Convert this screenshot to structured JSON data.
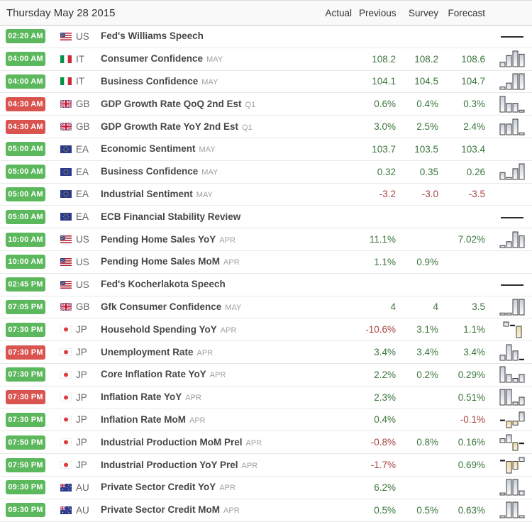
{
  "colors": {
    "badge_green": "#5cb85c",
    "badge_red": "#d9534f",
    "value_positive": "#3c763d",
    "value_negative": "#a94442"
  },
  "header": {
    "date": "Thursday May 28 2015",
    "columns": [
      "Actual",
      "Previous",
      "Survey",
      "Forecast"
    ]
  },
  "rows": [
    {
      "time": "02:20 AM",
      "badge": "green",
      "flag": "us",
      "country": "US",
      "event": "Fed's Williams Speech",
      "ref": "",
      "actual": "",
      "previous": "",
      "survey": "",
      "forecast": "",
      "spark": {
        "type": "line"
      }
    },
    {
      "time": "04:00 AM",
      "badge": "green",
      "flag": "it",
      "country": "IT",
      "event": "Consumer Confidence",
      "ref": "MAY",
      "actual": "",
      "previous": "108.2",
      "survey": "108.2",
      "forecast": "108.6",
      "spark": {
        "type": "bars",
        "values": [
          1,
          2.5,
          3.5,
          2.8
        ]
      }
    },
    {
      "time": "04:00 AM",
      "badge": "green",
      "flag": "it",
      "country": "IT",
      "event": "Business Confidence",
      "ref": "MAY",
      "actual": "",
      "previous": "104.1",
      "survey": "104.5",
      "forecast": "104.7",
      "spark": {
        "type": "bars",
        "values": [
          0.5,
          1.3,
          3.2,
          3.2
        ]
      }
    },
    {
      "time": "04:30 AM",
      "badge": "red",
      "flag": "gb",
      "country": "GB",
      "event": "GDP Growth Rate QoQ 2nd Est",
      "ref": "Q1",
      "actual": "",
      "previous": "0.6%",
      "survey": "0.4%",
      "forecast": "0.3%",
      "spark": {
        "type": "bars",
        "values": [
          3.2,
          1.8,
          1.8,
          0.4
        ]
      }
    },
    {
      "time": "04:30 AM",
      "badge": "red",
      "flag": "gb",
      "country": "GB",
      "event": "GDP Growth Rate YoY 2nd Est",
      "ref": "Q1",
      "actual": "",
      "previous": "3.0%",
      "survey": "2.5%",
      "forecast": "2.4%",
      "spark": {
        "type": "bars",
        "values": [
          2.2,
          2.2,
          3.2,
          0.4
        ]
      }
    },
    {
      "time": "05:00 AM",
      "badge": "green",
      "flag": "ea",
      "country": "EA",
      "event": "Economic Sentiment",
      "ref": "MAY",
      "actual": "",
      "previous": "103.7",
      "survey": "103.5",
      "forecast": "103.4",
      "spark": null
    },
    {
      "time": "05:00 AM",
      "badge": "green",
      "flag": "ea",
      "country": "EA",
      "event": "Business Confidence",
      "ref": "MAY",
      "actual": "",
      "previous": "0.32",
      "survey": "0.35",
      "forecast": "0.26",
      "spark": {
        "type": "bars",
        "values": [
          1.4,
          0.4,
          2.2,
          3.2
        ]
      }
    },
    {
      "time": "05:00 AM",
      "badge": "green",
      "flag": "ea",
      "country": "EA",
      "event": "Industrial Sentiment",
      "ref": "MAY",
      "actual": "",
      "previous": "-3.2",
      "survey": "-3.0",
      "forecast": "-3.5",
      "spark": null
    },
    {
      "time": "05:00 AM",
      "badge": "green",
      "flag": "ea",
      "country": "EA",
      "event": "ECB Financial Stability Review",
      "ref": "",
      "actual": "",
      "previous": "",
      "survey": "",
      "forecast": "",
      "spark": {
        "type": "line"
      }
    },
    {
      "time": "10:00 AM",
      "badge": "green",
      "flag": "us",
      "country": "US",
      "event": "Pending Home Sales YoY",
      "ref": "APR",
      "actual": "",
      "previous": "11.1%",
      "survey": "",
      "forecast": "7.02%",
      "spark": {
        "type": "bars",
        "values": [
          0.4,
          1.2,
          3.2,
          2.4
        ]
      }
    },
    {
      "time": "10:00 AM",
      "badge": "green",
      "flag": "us",
      "country": "US",
      "event": "Pending Home Sales MoM",
      "ref": "APR",
      "actual": "",
      "previous": "1.1%",
      "survey": "0.9%",
      "forecast": "",
      "spark": null
    },
    {
      "time": "02:45 PM",
      "badge": "green",
      "flag": "us",
      "country": "US",
      "event": "Fed's Kocherlakota Speech",
      "ref": "",
      "actual": "",
      "previous": "",
      "survey": "",
      "forecast": "",
      "spark": {
        "type": "line"
      }
    },
    {
      "time": "07:05 PM",
      "badge": "green",
      "flag": "gb",
      "country": "GB",
      "event": "Gfk Consumer Confidence",
      "ref": "MAY",
      "actual": "",
      "previous": "4",
      "survey": "4",
      "forecast": "3.5",
      "spark": {
        "type": "bars",
        "values": [
          0.4,
          0.4,
          3.2,
          3.2
        ]
      }
    },
    {
      "time": "07:30 PM",
      "badge": "green",
      "flag": "jp",
      "country": "JP",
      "event": "Household Spending YoY",
      "ref": "APR",
      "actual": "",
      "previous": "-10.6%",
      "survey": "3.1%",
      "forecast": "1.1%",
      "spark": {
        "type": "bars",
        "values": [
          1.2,
          0.2,
          -3.2
        ]
      }
    },
    {
      "time": "07:30 PM",
      "badge": "red",
      "flag": "jp",
      "country": "JP",
      "event": "Unemployment Rate",
      "ref": "APR",
      "actual": "",
      "previous": "3.4%",
      "survey": "3.4%",
      "forecast": "3.4%",
      "spark": {
        "type": "bars",
        "values": [
          1,
          3,
          1.8,
          0.3
        ]
      }
    },
    {
      "time": "07:30 PM",
      "badge": "green",
      "flag": "jp",
      "country": "JP",
      "event": "Core Inflation Rate YoY",
      "ref": "APR",
      "actual": "",
      "previous": "2.2%",
      "survey": "0.2%",
      "forecast": "0.29%",
      "spark": {
        "type": "bars",
        "values": [
          3.2,
          1.6,
          0.8,
          1.6
        ]
      }
    },
    {
      "time": "07:30 PM",
      "badge": "red",
      "flag": "jp",
      "country": "JP",
      "event": "Inflation Rate YoY",
      "ref": "APR",
      "actual": "",
      "previous": "2.3%",
      "survey": "",
      "forecast": "0.51%",
      "spark": {
        "type": "bars",
        "values": [
          3.2,
          3.2,
          0.6,
          1.6
        ]
      }
    },
    {
      "time": "07:30 PM",
      "badge": "green",
      "flag": "jp",
      "country": "JP",
      "event": "Inflation Rate MoM",
      "ref": "APR",
      "actual": "",
      "previous": "0.4%",
      "survey": "",
      "forecast": "-0.1%",
      "spark": {
        "type": "bars",
        "values": [
          0.2,
          -1,
          -0.6,
          1.4
        ]
      }
    },
    {
      "time": "07:50 PM",
      "badge": "green",
      "flag": "jp",
      "country": "JP",
      "event": "Industrial Production MoM Prel",
      "ref": "APR",
      "actual": "",
      "previous": "-0.8%",
      "survey": "0.8%",
      "forecast": "0.16%",
      "spark": {
        "type": "bars",
        "values": [
          1,
          2,
          -2,
          -0.3
        ]
      }
    },
    {
      "time": "07:50 PM",
      "badge": "green",
      "flag": "jp",
      "country": "JP",
      "event": "Industrial Production YoY Prel",
      "ref": "APR",
      "actual": "",
      "previous": "-1.7%",
      "survey": "",
      "forecast": "0.69%",
      "spark": {
        "type": "bars",
        "values": [
          0.2,
          -3,
          -2,
          1
        ]
      }
    },
    {
      "time": "09:30 PM",
      "badge": "green",
      "flag": "au",
      "country": "AU",
      "event": "Private Sector Credit YoY",
      "ref": "APR",
      "actual": "",
      "previous": "6.2%",
      "survey": "",
      "forecast": "",
      "spark": {
        "type": "bars",
        "values": [
          0.4,
          3,
          3,
          0.8
        ]
      }
    },
    {
      "time": "09:30 PM",
      "badge": "green",
      "flag": "au",
      "country": "AU",
      "event": "Private Sector Credit MoM",
      "ref": "APR",
      "actual": "",
      "previous": "0.5%",
      "survey": "0.5%",
      "forecast": "0.63%",
      "spark": {
        "type": "bars",
        "values": [
          0.4,
          3,
          3,
          0.4
        ]
      }
    }
  ]
}
